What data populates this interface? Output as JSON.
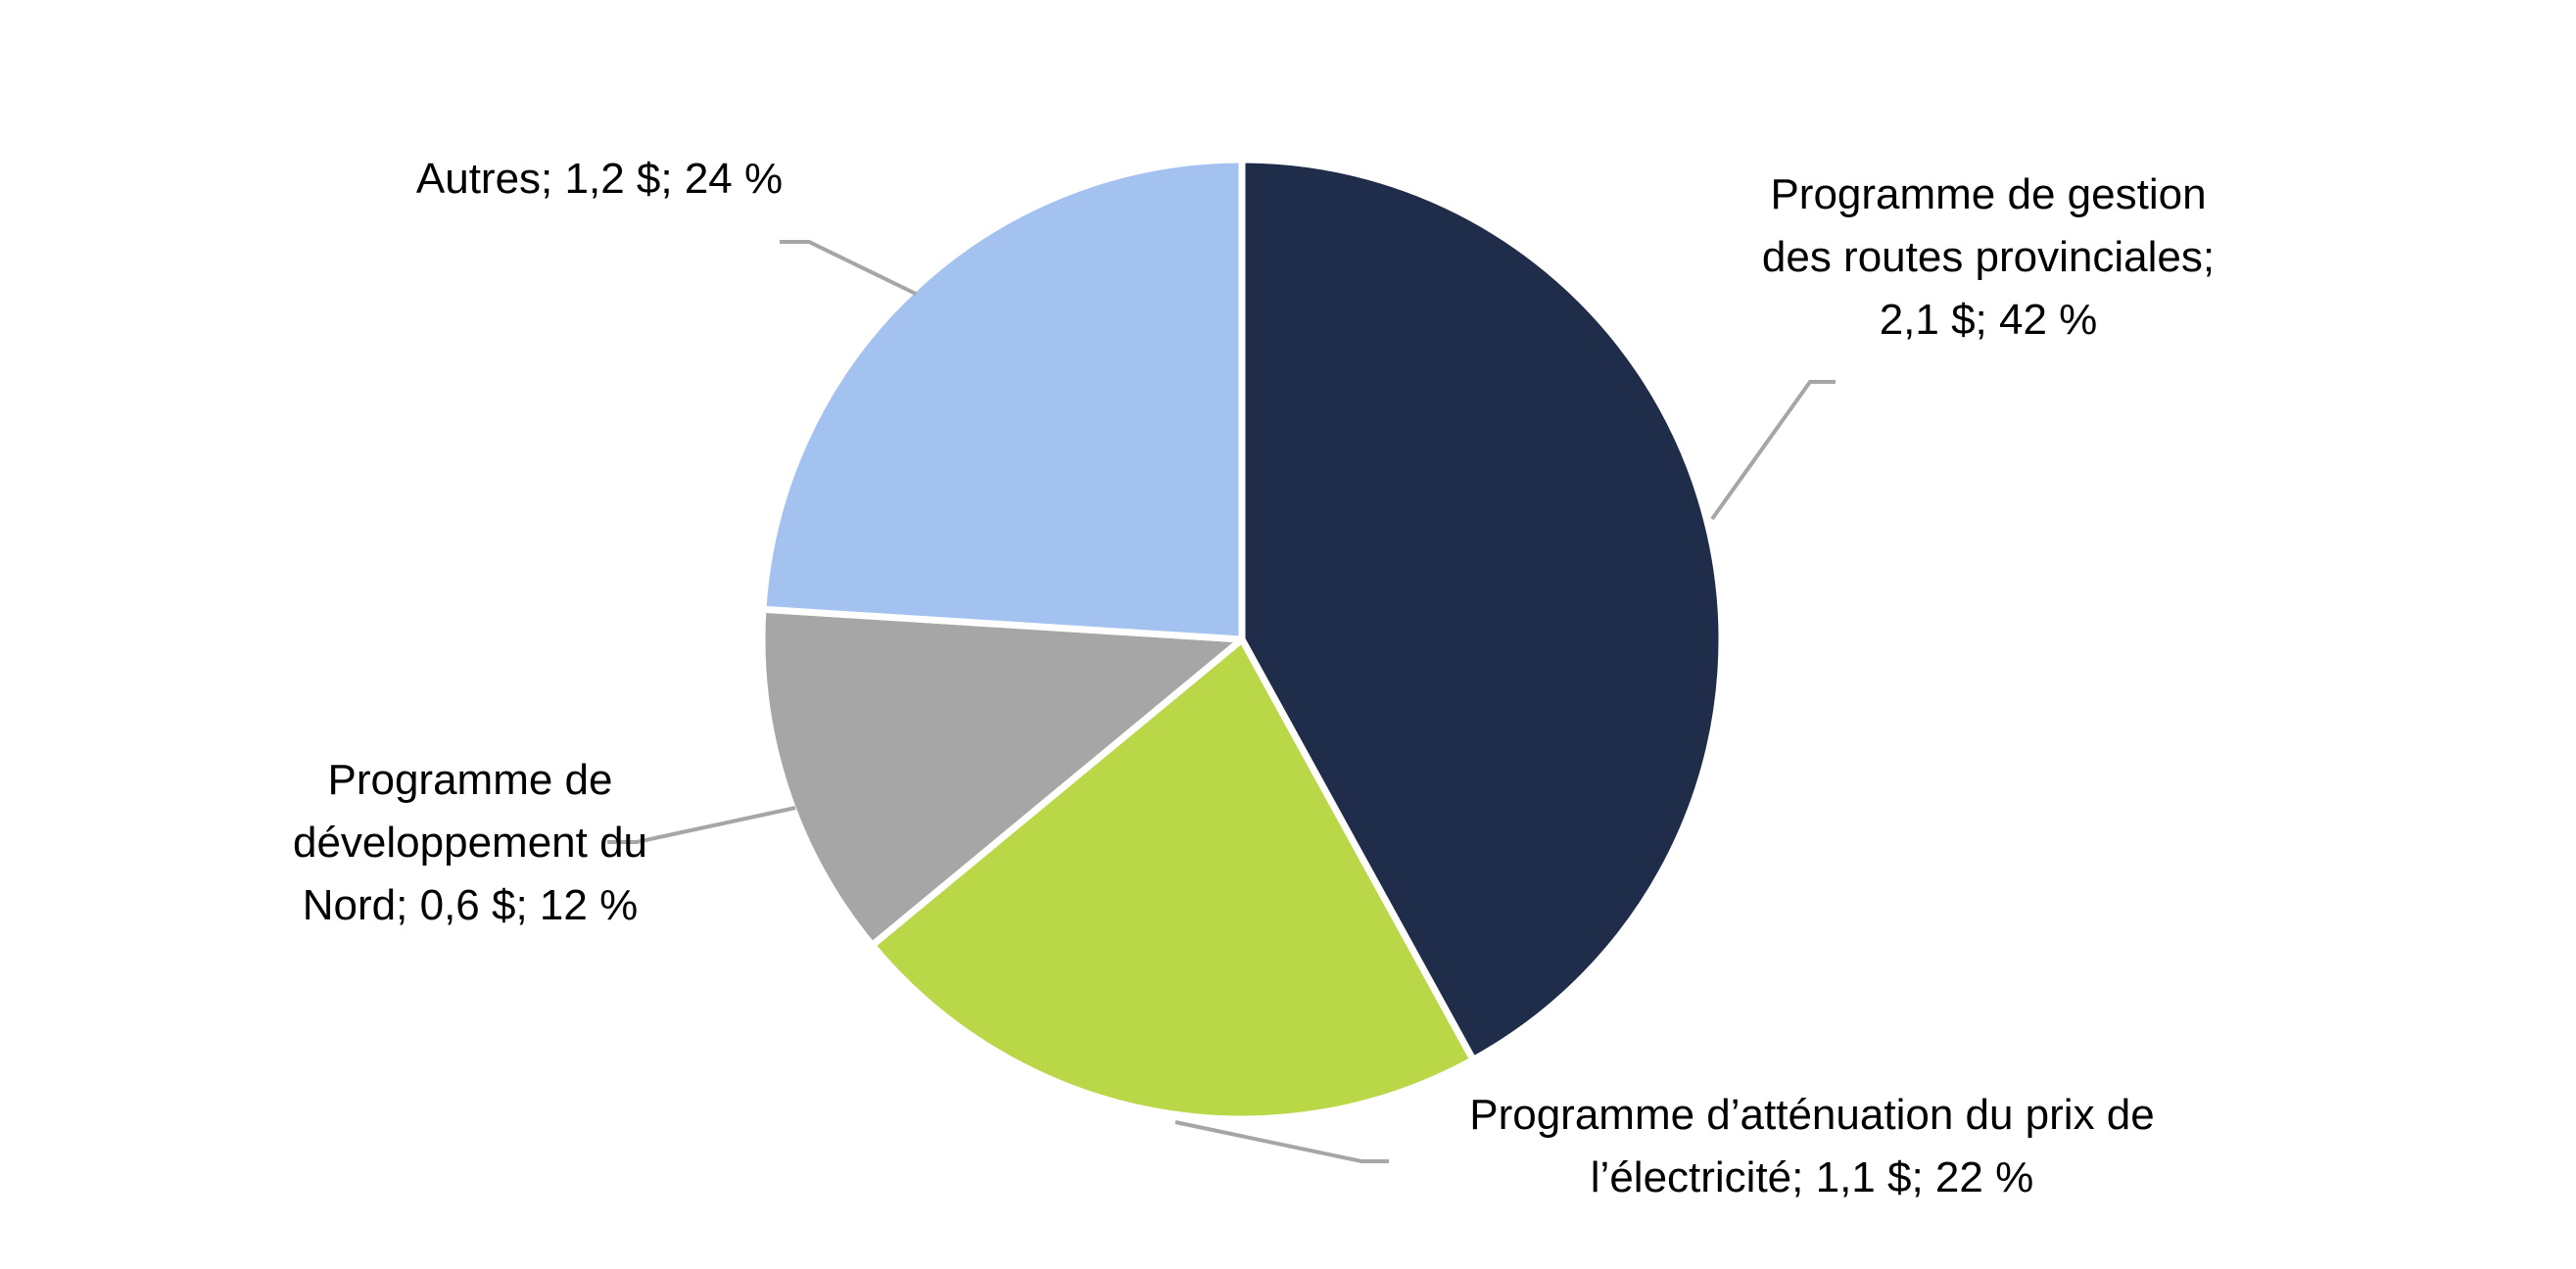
{
  "chart_data": {
    "type": "pie",
    "title": "",
    "start_angle_deg": 0,
    "direction": "clockwise",
    "slices": [
      {
        "key": "routes",
        "label_lines": [
          "Programme de gestion",
          "des routes provinciales;",
          "2,1 $;  42 %"
        ],
        "value": 2.1,
        "percent": 42,
        "color": "#1f2d4b"
      },
      {
        "key": "electricite",
        "label_lines": [
          "Programme d’atténuation du prix de",
          "l’électricité; 1,1 $; 22 %"
        ],
        "value": 1.1,
        "percent": 22,
        "color": "#bad747"
      },
      {
        "key": "nord",
        "label_lines": [
          "Programme de",
          "développement du",
          "Nord; 0,6 $; 12 %"
        ],
        "value": 0.6,
        "percent": 12,
        "color": "#a6a6a6"
      },
      {
        "key": "autres",
        "label_lines": [
          "Autres; 1,2 $; 24 %"
        ],
        "value": 1.2,
        "percent": 24,
        "color": "#a3c2f0"
      }
    ]
  }
}
